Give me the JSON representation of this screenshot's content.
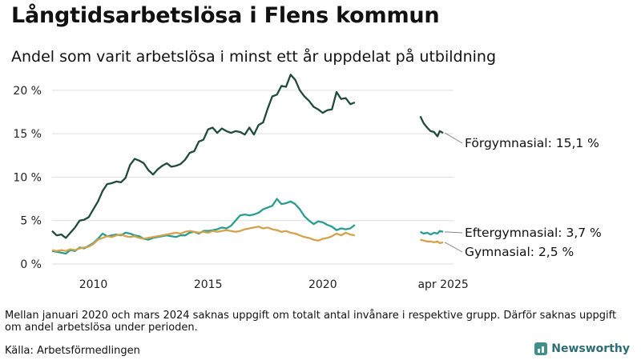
{
  "colors": {
    "forgymnasial": "#1f4a3d",
    "eftergymnasial": "#2a9d8f",
    "gymnasial": "#d4a24c",
    "grid": "#dddddd",
    "brand": "#2c6e74"
  },
  "footer": {
    "note": "Mellan januari 2020 och mars 2024 saknas uppgift om totalt antal invånare i respektive grupp. Därför saknas uppgift om andel arbetslösa under perioden.",
    "source": "Källa: Arbetsförmedlingen",
    "brand": "Newsworthy",
    "brand_icon": "bar-chart-icon"
  },
  "chart_data": {
    "type": "line",
    "title": "Långtidsarbetslösa i Flens kommun",
    "subtitle": "Andel som varit arbetslösa i minst ett år uppdelat på utbildning",
    "xlabel": "",
    "ylabel": "",
    "x_unit": "year",
    "xlim": [
      2008.2,
      2025.7
    ],
    "ylim": [
      0,
      21
    ],
    "yticks": [
      {
        "value": 0,
        "label": "0 %"
      },
      {
        "value": 5,
        "label": "5 %"
      },
      {
        "value": 10,
        "label": "10 %"
      },
      {
        "value": 15,
        "label": "15 %"
      },
      {
        "value": 20,
        "label": "20 %"
      }
    ],
    "xticks": [
      {
        "value": 2010,
        "label": "2010"
      },
      {
        "value": 2015,
        "label": "2015"
      },
      {
        "value": 2020,
        "label": "2020"
      },
      {
        "value": 2025.25,
        "label": "apr 2025"
      }
    ],
    "grid": "horizontal",
    "legend": "end-labels",
    "series": [
      {
        "name": "Förgymnasial",
        "end_label": "Förgymnasial: 15,1 %",
        "color_key": "forgymnasial",
        "segments": [
          [
            [
              2008.2,
              3.8
            ],
            [
              2008.4,
              3.3
            ],
            [
              2008.6,
              3.4
            ],
            [
              2008.8,
              3.0
            ],
            [
              2009.0,
              3.6
            ],
            [
              2009.2,
              4.2
            ],
            [
              2009.4,
              5.0
            ],
            [
              2009.6,
              5.1
            ],
            [
              2009.8,
              5.4
            ],
            [
              2010.0,
              6.3
            ],
            [
              2010.2,
              7.2
            ],
            [
              2010.4,
              8.4
            ],
            [
              2010.6,
              9.2
            ],
            [
              2010.8,
              9.3
            ],
            [
              2011.0,
              9.5
            ],
            [
              2011.2,
              9.4
            ],
            [
              2011.4,
              9.9
            ],
            [
              2011.6,
              11.4
            ],
            [
              2011.8,
              12.1
            ],
            [
              2012.0,
              11.9
            ],
            [
              2012.2,
              11.6
            ],
            [
              2012.4,
              10.8
            ],
            [
              2012.6,
              10.3
            ],
            [
              2012.8,
              10.9
            ],
            [
              2013.0,
              11.3
            ],
            [
              2013.2,
              11.6
            ],
            [
              2013.4,
              11.2
            ],
            [
              2013.6,
              11.3
            ],
            [
              2013.8,
              11.5
            ],
            [
              2014.0,
              12.0
            ],
            [
              2014.2,
              12.8
            ],
            [
              2014.4,
              13.0
            ],
            [
              2014.6,
              14.1
            ],
            [
              2014.8,
              14.3
            ],
            [
              2015.0,
              15.5
            ],
            [
              2015.2,
              15.7
            ],
            [
              2015.4,
              15.1
            ],
            [
              2015.6,
              15.6
            ],
            [
              2015.8,
              15.3
            ],
            [
              2016.0,
              15.1
            ],
            [
              2016.2,
              15.3
            ],
            [
              2016.4,
              15.2
            ],
            [
              2016.6,
              14.9
            ],
            [
              2016.8,
              15.7
            ],
            [
              2017.0,
              14.9
            ],
            [
              2017.2,
              16.0
            ],
            [
              2017.4,
              16.3
            ],
            [
              2017.6,
              17.9
            ],
            [
              2017.8,
              19.3
            ],
            [
              2018.0,
              19.5
            ],
            [
              2018.2,
              20.5
            ],
            [
              2018.4,
              20.4
            ],
            [
              2018.6,
              21.8
            ],
            [
              2018.8,
              21.2
            ],
            [
              2019.0,
              20.0
            ],
            [
              2019.2,
              19.3
            ],
            [
              2019.4,
              18.8
            ],
            [
              2019.6,
              18.1
            ],
            [
              2019.8,
              17.8
            ],
            [
              2020.0,
              17.4
            ],
            [
              2020.2,
              17.7
            ],
            [
              2020.4,
              17.8
            ],
            [
              2020.6,
              19.8
            ],
            [
              2020.8,
              19.0
            ],
            [
              2021.0,
              19.1
            ],
            [
              2021.2,
              18.4
            ],
            [
              2021.4,
              18.6
            ]
          ],
          [
            [
              2024.25,
              17.0
            ],
            [
              2024.4,
              16.2
            ],
            [
              2024.55,
              15.7
            ],
            [
              2024.7,
              15.3
            ],
            [
              2024.85,
              15.2
            ],
            [
              2025.0,
              14.7
            ],
            [
              2025.1,
              15.3
            ],
            [
              2025.25,
              15.1
            ]
          ]
        ]
      },
      {
        "name": "Eftergymnasial",
        "end_label": "Eftergymnasial:  3,7 %",
        "color_key": "eftergymnasial",
        "segments": [
          [
            [
              2008.2,
              1.5
            ],
            [
              2008.4,
              1.4
            ],
            [
              2008.6,
              1.3
            ],
            [
              2008.8,
              1.2
            ],
            [
              2009.0,
              1.6
            ],
            [
              2009.2,
              1.5
            ],
            [
              2009.4,
              1.9
            ],
            [
              2009.6,
              1.8
            ],
            [
              2009.8,
              2.1
            ],
            [
              2010.0,
              2.4
            ],
            [
              2010.2,
              2.9
            ],
            [
              2010.4,
              3.5
            ],
            [
              2010.6,
              3.2
            ],
            [
              2010.8,
              3.3
            ],
            [
              2011.0,
              3.4
            ],
            [
              2011.2,
              3.3
            ],
            [
              2011.4,
              3.6
            ],
            [
              2011.6,
              3.5
            ],
            [
              2011.8,
              3.3
            ],
            [
              2012.0,
              3.2
            ],
            [
              2012.2,
              2.9
            ],
            [
              2012.4,
              2.8
            ],
            [
              2012.6,
              3.0
            ],
            [
              2012.8,
              3.1
            ],
            [
              2013.0,
              3.2
            ],
            [
              2013.2,
              3.3
            ],
            [
              2013.4,
              3.2
            ],
            [
              2013.6,
              3.1
            ],
            [
              2013.8,
              3.3
            ],
            [
              2014.0,
              3.3
            ],
            [
              2014.2,
              3.6
            ],
            [
              2014.4,
              3.7
            ],
            [
              2014.6,
              3.5
            ],
            [
              2014.8,
              3.8
            ],
            [
              2015.0,
              3.8
            ],
            [
              2015.2,
              3.9
            ],
            [
              2015.4,
              4.0
            ],
            [
              2015.6,
              4.2
            ],
            [
              2015.8,
              4.1
            ],
            [
              2016.0,
              4.4
            ],
            [
              2016.2,
              5.0
            ],
            [
              2016.4,
              5.6
            ],
            [
              2016.6,
              5.7
            ],
            [
              2016.8,
              5.6
            ],
            [
              2017.0,
              5.7
            ],
            [
              2017.2,
              5.9
            ],
            [
              2017.4,
              6.3
            ],
            [
              2017.6,
              6.5
            ],
            [
              2017.8,
              6.7
            ],
            [
              2018.0,
              7.5
            ],
            [
              2018.2,
              6.9
            ],
            [
              2018.4,
              7.0
            ],
            [
              2018.6,
              7.2
            ],
            [
              2018.8,
              6.9
            ],
            [
              2019.0,
              6.3
            ],
            [
              2019.2,
              5.5
            ],
            [
              2019.4,
              5.0
            ],
            [
              2019.6,
              4.6
            ],
            [
              2019.8,
              4.9
            ],
            [
              2020.0,
              4.8
            ],
            [
              2020.2,
              4.5
            ],
            [
              2020.4,
              4.3
            ],
            [
              2020.6,
              3.9
            ],
            [
              2020.8,
              4.1
            ],
            [
              2021.0,
              4.0
            ],
            [
              2021.2,
              4.1
            ],
            [
              2021.4,
              4.5
            ]
          ],
          [
            [
              2024.25,
              3.7
            ],
            [
              2024.4,
              3.5
            ],
            [
              2024.55,
              3.6
            ],
            [
              2024.7,
              3.4
            ],
            [
              2024.85,
              3.6
            ],
            [
              2025.0,
              3.5
            ],
            [
              2025.1,
              3.8
            ],
            [
              2025.25,
              3.7
            ]
          ]
        ]
      },
      {
        "name": "Gymnasial",
        "end_label": "Gymnasial:  2,5 %",
        "color_key": "gymnasial",
        "segments": [
          [
            [
              2008.2,
              1.6
            ],
            [
              2008.4,
              1.5
            ],
            [
              2008.6,
              1.6
            ],
            [
              2008.8,
              1.5
            ],
            [
              2009.0,
              1.7
            ],
            [
              2009.2,
              1.6
            ],
            [
              2009.4,
              1.8
            ],
            [
              2009.6,
              1.9
            ],
            [
              2009.8,
              2.0
            ],
            [
              2010.0,
              2.3
            ],
            [
              2010.2,
              2.8
            ],
            [
              2010.4,
              3.0
            ],
            [
              2010.6,
              3.2
            ],
            [
              2010.8,
              3.1
            ],
            [
              2011.0,
              3.3
            ],
            [
              2011.2,
              3.4
            ],
            [
              2011.4,
              3.2
            ],
            [
              2011.6,
              3.1
            ],
            [
              2011.8,
              3.2
            ],
            [
              2012.0,
              3.0
            ],
            [
              2012.2,
              2.9
            ],
            [
              2012.4,
              3.0
            ],
            [
              2012.6,
              3.1
            ],
            [
              2012.8,
              3.2
            ],
            [
              2013.0,
              3.3
            ],
            [
              2013.2,
              3.4
            ],
            [
              2013.4,
              3.5
            ],
            [
              2013.6,
              3.6
            ],
            [
              2013.8,
              3.5
            ],
            [
              2014.0,
              3.7
            ],
            [
              2014.2,
              3.8
            ],
            [
              2014.4,
              3.7
            ],
            [
              2014.6,
              3.6
            ],
            [
              2014.8,
              3.7
            ],
            [
              2015.0,
              3.6
            ],
            [
              2015.2,
              3.8
            ],
            [
              2015.4,
              3.7
            ],
            [
              2015.6,
              3.8
            ],
            [
              2015.8,
              3.9
            ],
            [
              2016.0,
              3.8
            ],
            [
              2016.2,
              3.7
            ],
            [
              2016.4,
              3.8
            ],
            [
              2016.6,
              4.0
            ],
            [
              2016.8,
              4.1
            ],
            [
              2017.0,
              4.2
            ],
            [
              2017.2,
              4.3
            ],
            [
              2017.4,
              4.1
            ],
            [
              2017.6,
              4.2
            ],
            [
              2017.8,
              4.0
            ],
            [
              2018.0,
              3.9
            ],
            [
              2018.2,
              3.7
            ],
            [
              2018.4,
              3.8
            ],
            [
              2018.6,
              3.6
            ],
            [
              2018.8,
              3.5
            ],
            [
              2019.0,
              3.3
            ],
            [
              2019.2,
              3.1
            ],
            [
              2019.4,
              3.0
            ],
            [
              2019.6,
              2.8
            ],
            [
              2019.8,
              2.7
            ],
            [
              2020.0,
              2.9
            ],
            [
              2020.2,
              3.0
            ],
            [
              2020.4,
              3.2
            ],
            [
              2020.6,
              3.5
            ],
            [
              2020.8,
              3.3
            ],
            [
              2021.0,
              3.6
            ],
            [
              2021.2,
              3.4
            ],
            [
              2021.4,
              3.3
            ]
          ],
          [
            [
              2024.25,
              2.8
            ],
            [
              2024.4,
              2.7
            ],
            [
              2024.55,
              2.6
            ],
            [
              2024.7,
              2.6
            ],
            [
              2024.85,
              2.5
            ],
            [
              2025.0,
              2.6
            ],
            [
              2025.1,
              2.4
            ],
            [
              2025.25,
              2.5
            ]
          ]
        ]
      }
    ]
  }
}
